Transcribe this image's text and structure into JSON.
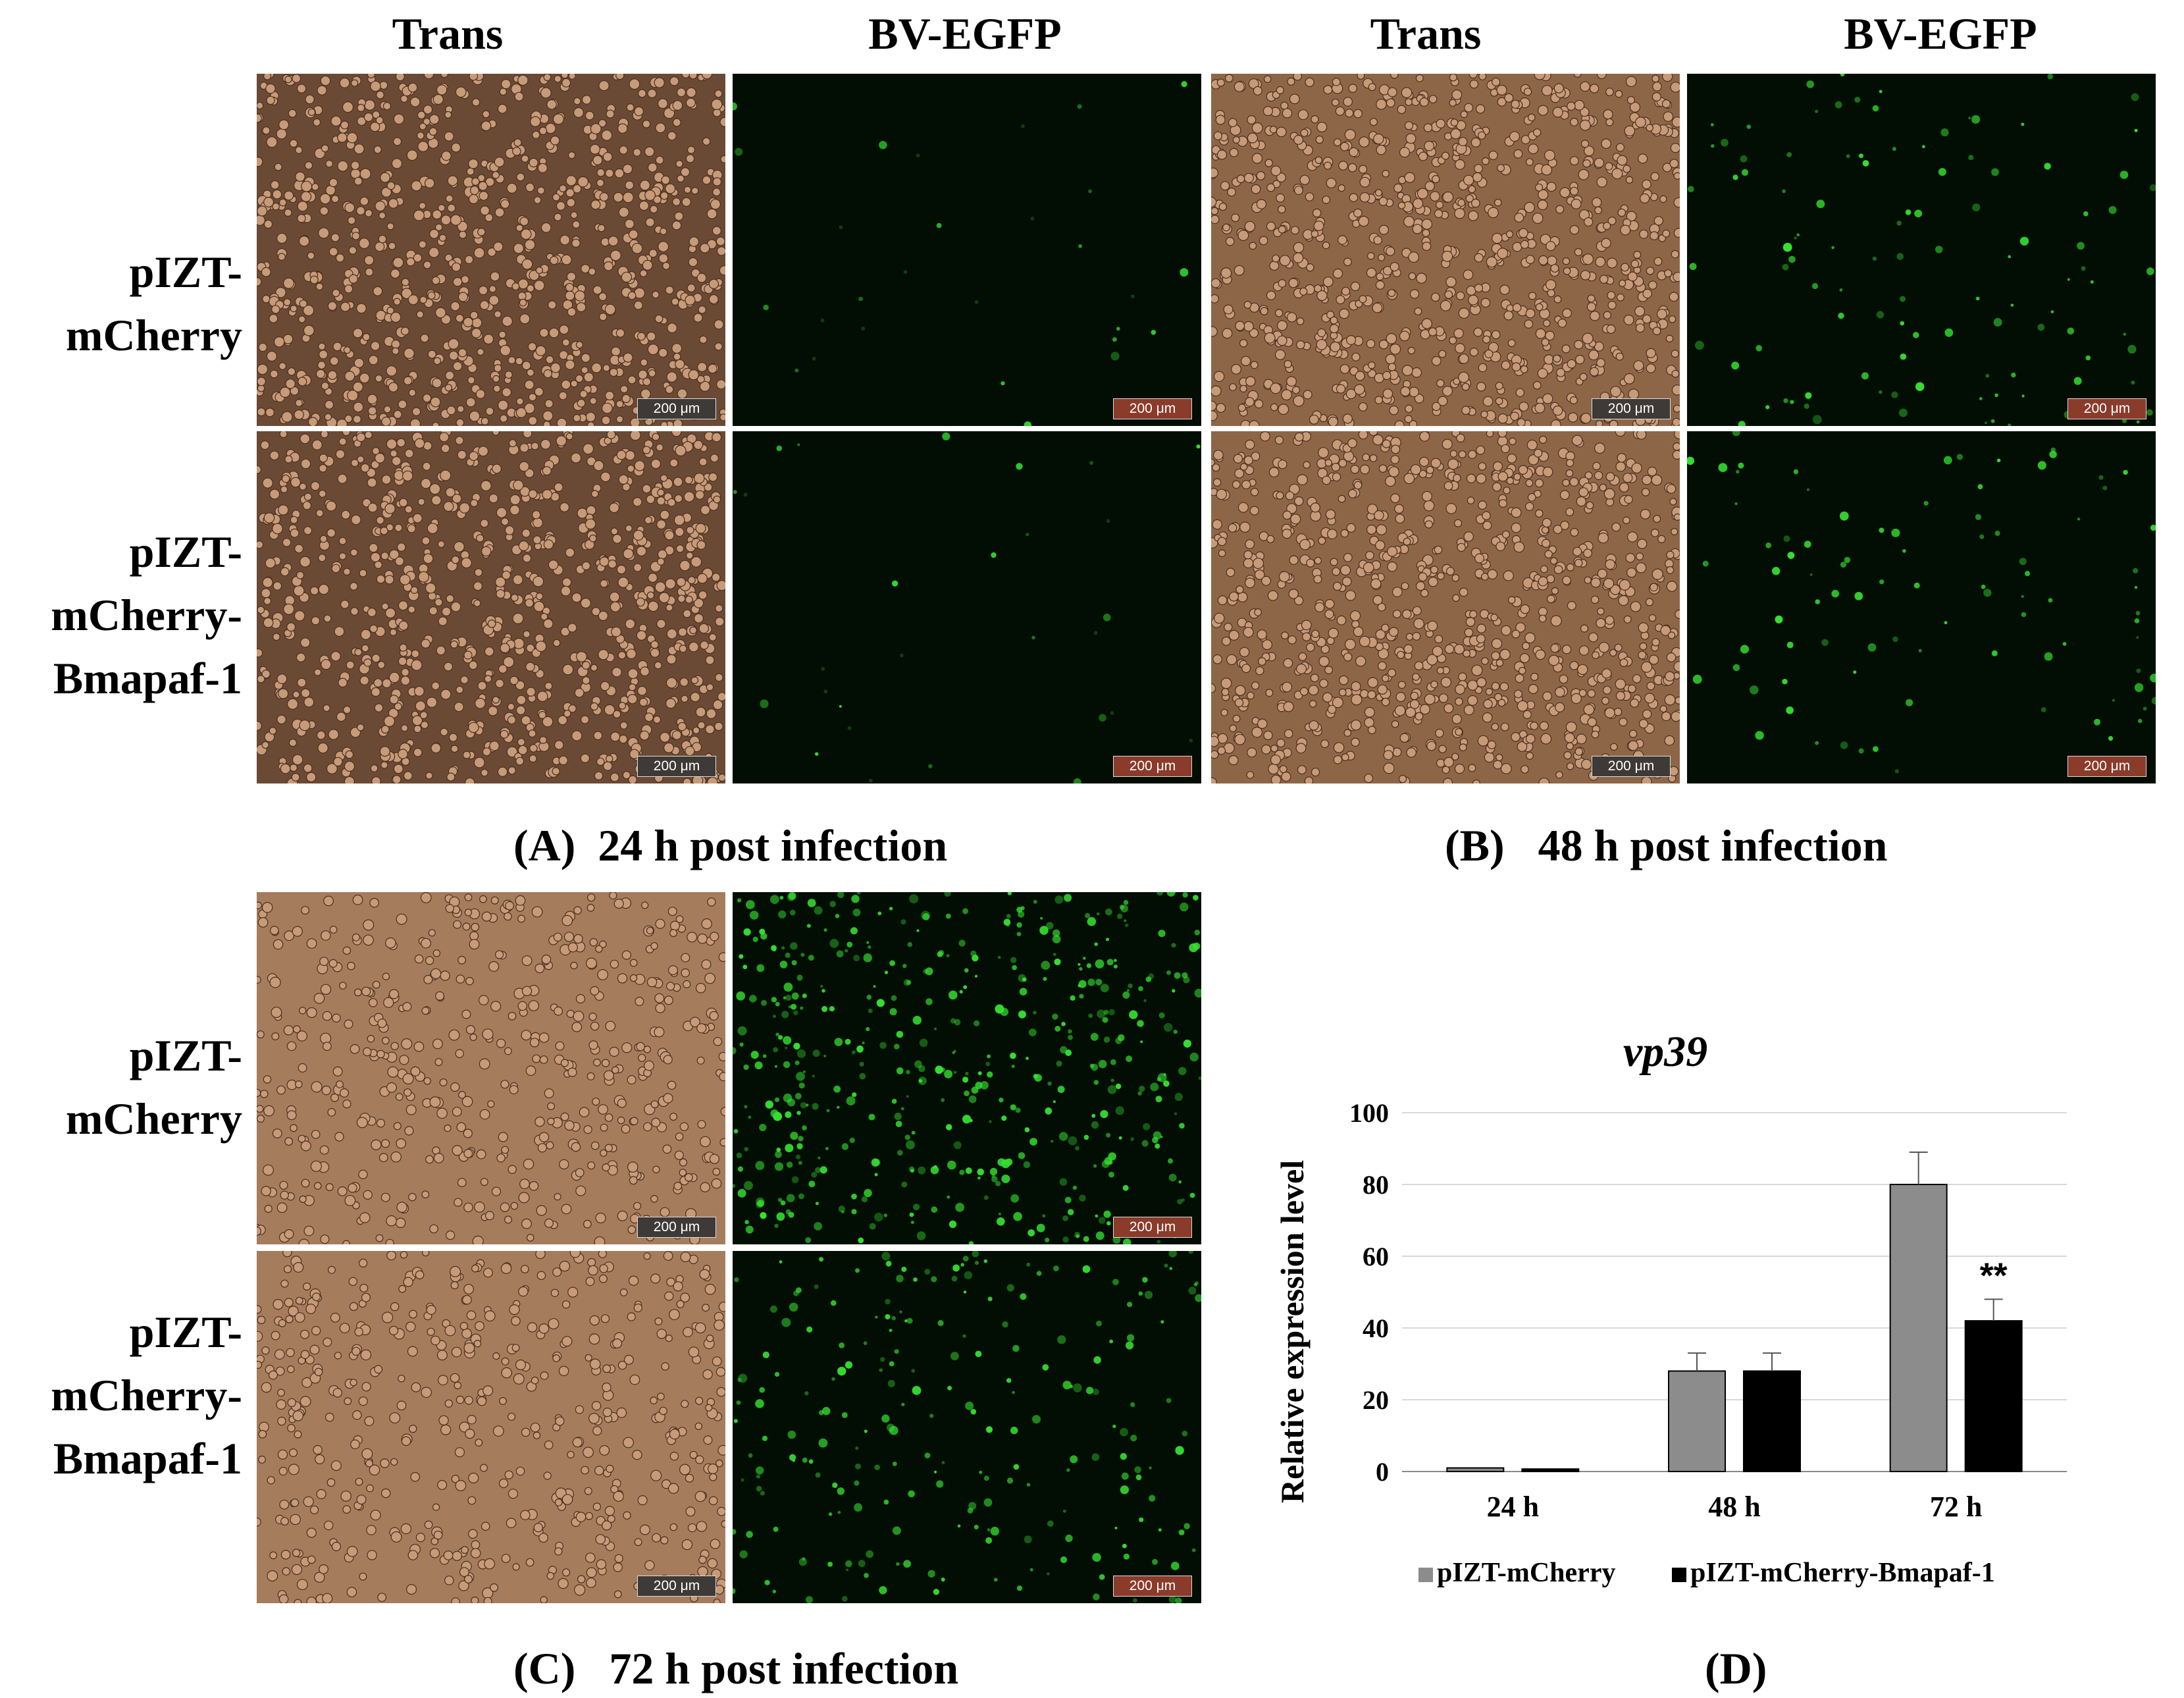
{
  "headers": {
    "trans_1": "Trans",
    "egfp_1": "BV-EGFP",
    "trans_2": "Trans",
    "egfp_2": "BV-EGFP"
  },
  "row_labels": {
    "control_line1": "pIZT-",
    "control_line2": "mCherry",
    "treat_line1": "pIZT-",
    "treat_line2": "mCherry-",
    "treat_line3": "Bmapaf-1"
  },
  "scale_bar_label": "200 μm",
  "panels": {
    "a_caption": "(A)  24 h post infection",
    "b_caption": "(B)   48 h post infection",
    "c_caption": "(C)   72 h post infection",
    "d_caption": "(D)"
  },
  "colors": {
    "trans_dark": "#5a4030",
    "trans_light": "#a77a58",
    "egfp_bg": "#020d03",
    "egfp_cell": "#35e030",
    "series_gray": "#8c8c8c",
    "series_black": "#000000"
  },
  "chart_data": {
    "type": "bar",
    "title": "vp39",
    "ylabel": "Relative expression level",
    "xlabel": "",
    "categories": [
      "24 h",
      "48 h",
      "72 h"
    ],
    "ylim": [
      0,
      100
    ],
    "yticks": [
      0,
      20,
      40,
      60,
      80,
      100
    ],
    "series": [
      {
        "name": "pIZT-mCherry",
        "values": [
          1,
          28,
          80
        ],
        "errors": [
          0.3,
          5,
          9
        ]
      },
      {
        "name": "pIZT-mCherry-Bmapaf-1",
        "values": [
          0.7,
          28,
          42
        ],
        "errors": [
          0.3,
          5,
          6
        ]
      }
    ],
    "annotations": [
      {
        "category": "72 h",
        "series": "pIZT-mCherry-Bmapaf-1",
        "text": "**"
      }
    ],
    "grid": true,
    "legend_position": "bottom"
  }
}
